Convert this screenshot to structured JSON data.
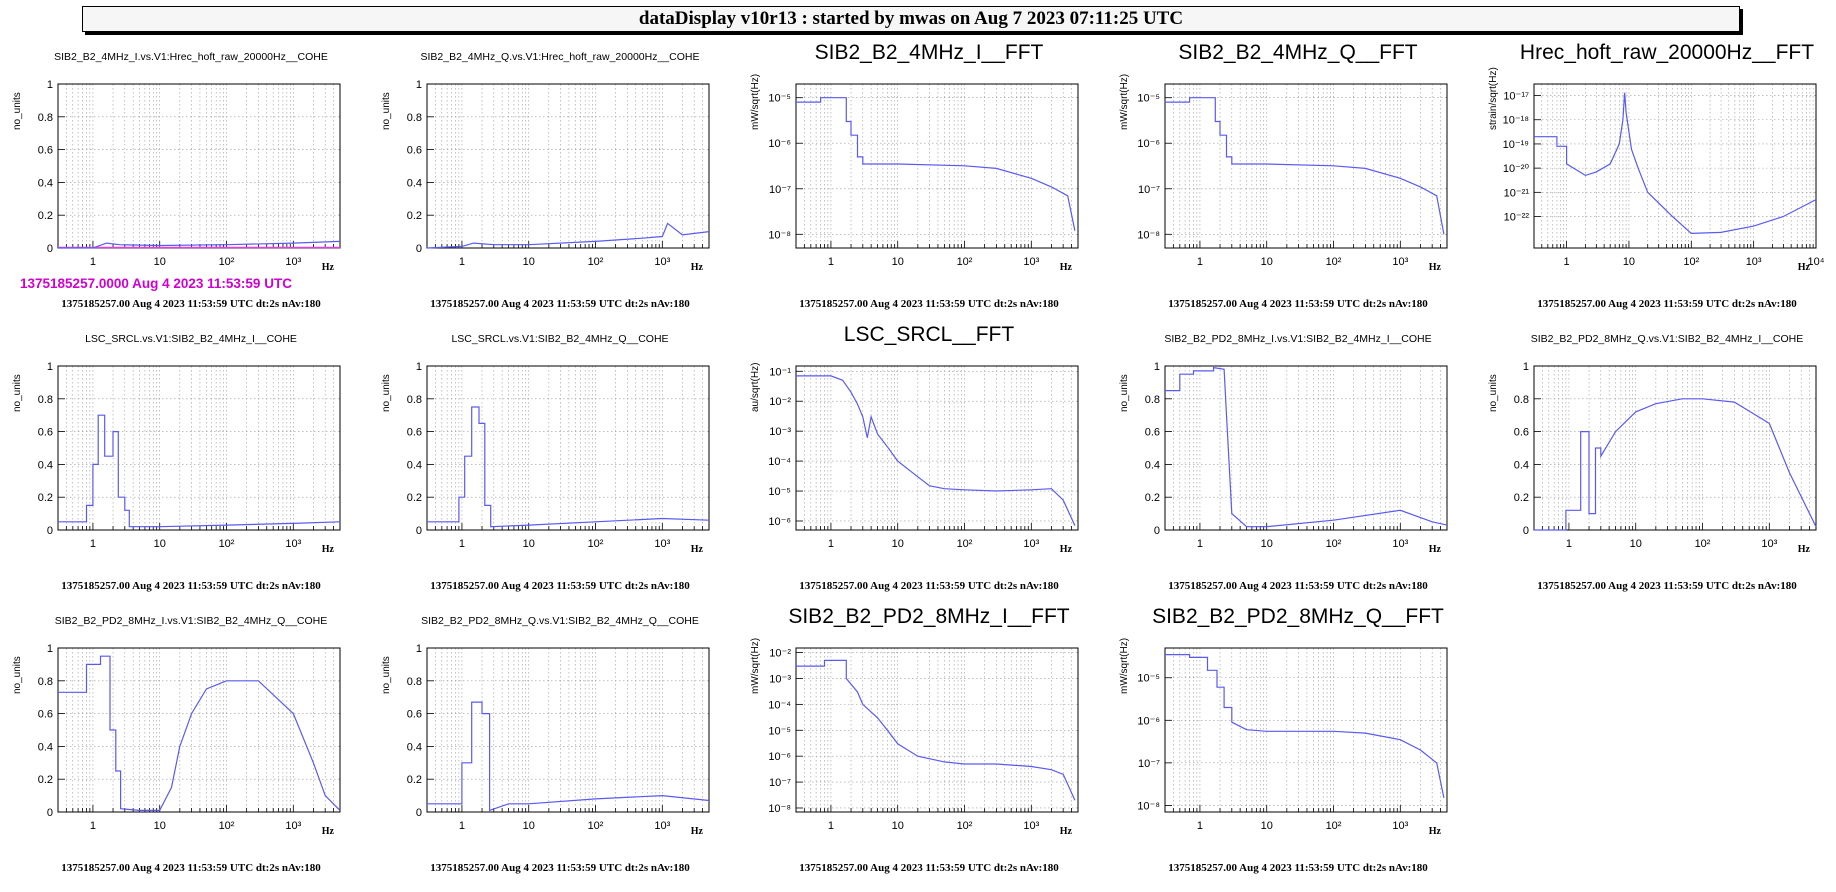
{
  "banner": "dataDisplay v10r13 : started by mwas on Aug  7 2023 07:11:25 UTC",
  "magenta_time": "1375185257.0000 Aug 4 2023 11:53:59 UTC",
  "footer_text": "1375185257.00 Aug 4 2023 11:53:59 UTC dt:2s nAv:180",
  "colors": {
    "trace": "#5a5af2",
    "zero_line": "#e040e0",
    "grid": "#9a9a9a",
    "magenta_text": "#d000d0"
  },
  "x_unit": "Hz",
  "chart_data": [
    {
      "type": "line",
      "title": "SIB2_B2_4MHz_I.vs.V1:Hrec_hoft_raw_20000Hz__COHE",
      "ylabel": "no_units",
      "xscale": "log",
      "yscale": "linear",
      "xlim": [
        0.3,
        5000
      ],
      "ylim": [
        0,
        1
      ],
      "xticks": [
        1,
        10,
        100,
        1000
      ],
      "yticks": [
        0,
        0.2,
        0.4,
        0.6,
        0.8,
        1
      ],
      "series": [
        {
          "x": [
            0.3,
            1,
            1.6,
            2.5,
            10,
            100,
            1000,
            5000
          ],
          "y": [
            0,
            0,
            0.03,
            0.02,
            0.015,
            0.02,
            0.03,
            0.04
          ]
        }
      ]
    },
    {
      "type": "line",
      "title": "SIB2_B2_4MHz_Q.vs.V1:Hrec_hoft_raw_20000Hz__COHE",
      "ylabel": "no_units",
      "xscale": "log",
      "yscale": "linear",
      "xlim": [
        0.3,
        5000
      ],
      "ylim": [
        0,
        1
      ],
      "xticks": [
        1,
        10,
        100,
        1000
      ],
      "yticks": [
        0,
        0.2,
        0.4,
        0.6,
        0.8,
        1
      ],
      "series": [
        {
          "x": [
            0.3,
            1,
            1.5,
            3,
            10,
            100,
            500,
            1000,
            1200,
            2000,
            5000
          ],
          "y": [
            0,
            0.01,
            0.03,
            0.02,
            0.02,
            0.04,
            0.06,
            0.07,
            0.15,
            0.08,
            0.1
          ]
        }
      ]
    },
    {
      "type": "line",
      "title": "SIB2_B2_4MHz_I__FFT",
      "ylabel": "mW/sqrt(Hz)",
      "xscale": "log",
      "yscale": "log",
      "xlim": [
        0.3,
        5000
      ],
      "ylim": [
        5e-09,
        2e-05
      ],
      "xticks": [
        1,
        10,
        100,
        1000
      ],
      "yticks": [
        1e-08,
        1e-07,
        1e-06,
        1e-05
      ],
      "series": [
        {
          "x": [
            0.3,
            0.7,
            0.7,
            1.7,
            1.7,
            2.0,
            2.0,
            2.5,
            2.5,
            3.0,
            3.0,
            10,
            100,
            300,
            1000,
            2000,
            3500,
            4500
          ],
          "y": [
            8e-06,
            8e-06,
            1e-05,
            1e-05,
            3e-06,
            3e-06,
            1.5e-06,
            1.5e-06,
            5e-07,
            5e-07,
            3.5e-07,
            3.5e-07,
            3.2e-07,
            2.8e-07,
            1.7e-07,
            1.1e-07,
            7e-08,
            1.2e-08
          ]
        }
      ]
    },
    {
      "type": "line",
      "title": "SIB2_B2_4MHz_Q__FFT",
      "ylabel": "mW/sqrt(Hz)",
      "xscale": "log",
      "yscale": "log",
      "xlim": [
        0.3,
        5000
      ],
      "ylim": [
        5e-09,
        2e-05
      ],
      "xticks": [
        1,
        10,
        100,
        1000
      ],
      "yticks": [
        1e-08,
        1e-07,
        1e-06,
        1e-05
      ],
      "series": [
        {
          "x": [
            0.3,
            0.7,
            0.7,
            1.7,
            1.7,
            2.0,
            2.0,
            2.5,
            2.5,
            3.0,
            3.0,
            10,
            100,
            300,
            1000,
            2000,
            3500,
            4500
          ],
          "y": [
            8e-06,
            8e-06,
            1e-05,
            1e-05,
            3e-06,
            3e-06,
            1.5e-06,
            1.5e-06,
            5e-07,
            5e-07,
            3.5e-07,
            3.5e-07,
            3.2e-07,
            2.8e-07,
            1.7e-07,
            1.1e-07,
            7e-08,
            1e-08
          ]
        }
      ]
    },
    {
      "type": "line",
      "title": "Hrec_hoft_raw_20000Hz__FFT",
      "ylabel": "strain/sqrt(Hz)",
      "xscale": "log",
      "yscale": "log",
      "xlim": [
        0.3,
        10000
      ],
      "ylim": [
        5e-24,
        3e-17
      ],
      "xticks": [
        1,
        10,
        100,
        1000,
        10000
      ],
      "yticks": [
        1e-22,
        1e-21,
        1e-20,
        1e-19,
        1e-18,
        1e-17
      ],
      "series": [
        {
          "x": [
            0.3,
            0.7,
            0.7,
            1.0,
            1.0,
            2.0,
            3.0,
            5.0,
            7.0,
            8.0,
            8.5,
            9.0,
            11.0,
            14.0,
            20.0,
            50.0,
            100.0,
            300.0,
            1000.0,
            3000.0,
            10000.0
          ],
          "y": [
            2e-19,
            2e-19,
            8e-20,
            8e-20,
            1.5e-20,
            5e-21,
            7e-21,
            1.5e-20,
            1e-19,
            1e-18,
            1.3e-17,
            2e-18,
            6e-20,
            1e-20,
            1e-21,
            1e-22,
            2e-23,
            2.2e-23,
            4e-23,
            1e-22,
            5e-22
          ]
        }
      ]
    },
    {
      "type": "line",
      "title": "LSC_SRCL.vs.V1:SIB2_B2_4MHz_I__COHE",
      "ylabel": "no_units",
      "xscale": "log",
      "yscale": "linear",
      "xlim": [
        0.3,
        5000
      ],
      "ylim": [
        0,
        1
      ],
      "xticks": [
        1,
        10,
        100,
        1000
      ],
      "yticks": [
        0,
        0.2,
        0.4,
        0.6,
        0.8,
        1
      ],
      "series": [
        {
          "x": [
            0.3,
            0.8,
            0.8,
            1.0,
            1.0,
            1.2,
            1.2,
            1.5,
            1.5,
            2.0,
            2.0,
            2.4,
            2.4,
            3.0,
            3.0,
            3.5,
            3.5,
            10,
            100,
            1000,
            5000
          ],
          "y": [
            0.05,
            0.05,
            0.15,
            0.15,
            0.4,
            0.4,
            0.7,
            0.7,
            0.45,
            0.45,
            0.6,
            0.6,
            0.2,
            0.2,
            0.12,
            0.12,
            0.02,
            0.02,
            0.03,
            0.04,
            0.05
          ]
        }
      ]
    },
    {
      "type": "line",
      "title": "LSC_SRCL.vs.V1:SIB2_B2_4MHz_Q__COHE",
      "ylabel": "no_units",
      "xscale": "log",
      "yscale": "linear",
      "xlim": [
        0.3,
        5000
      ],
      "ylim": [
        0,
        1
      ],
      "xticks": [
        1,
        10,
        100,
        1000
      ],
      "yticks": [
        0,
        0.2,
        0.4,
        0.6,
        0.8,
        1
      ],
      "series": [
        {
          "x": [
            0.3,
            0.9,
            0.9,
            1.1,
            1.1,
            1.4,
            1.4,
            1.8,
            1.8,
            2.2,
            2.2,
            2.7,
            2.7,
            10,
            100,
            1000,
            5000
          ],
          "y": [
            0.05,
            0.05,
            0.2,
            0.2,
            0.45,
            0.45,
            0.75,
            0.75,
            0.65,
            0.65,
            0.15,
            0.15,
            0.02,
            0.03,
            0.05,
            0.07,
            0.06
          ]
        }
      ]
    },
    {
      "type": "line",
      "title": "LSC_SRCL__FFT",
      "ylabel": "au/sqrt(Hz)",
      "xscale": "log",
      "yscale": "log",
      "xlim": [
        0.3,
        5000
      ],
      "ylim": [
        5e-07,
        0.15
      ],
      "xticks": [
        1,
        10,
        100,
        1000
      ],
      "yticks": [
        1e-06,
        1e-05,
        0.0001,
        0.001,
        0.01,
        0.1
      ],
      "series": [
        {
          "x": [
            0.3,
            1.0,
            1.5,
            2.0,
            2.5,
            3.0,
            3.5,
            4.0,
            5.0,
            7.0,
            10,
            20,
            30,
            50,
            100,
            300,
            1000,
            2000,
            3000,
            4500
          ],
          "y": [
            0.07,
            0.07,
            0.05,
            0.02,
            0.008,
            0.003,
            0.0006,
            0.003,
            0.0008,
            0.0003,
            0.0001,
            3e-05,
            1.5e-05,
            1.2e-05,
            1.1e-05,
            1e-05,
            1.1e-05,
            1.2e-05,
            5e-06,
            7e-07
          ]
        }
      ]
    },
    {
      "type": "line",
      "title": "SIB2_B2_PD2_8MHz_I.vs.V1:SIB2_B2_4MHz_I__COHE",
      "ylabel": "no_units",
      "xscale": "log",
      "yscale": "linear",
      "xlim": [
        0.3,
        5000
      ],
      "ylim": [
        0,
        1
      ],
      "xticks": [
        1,
        10,
        100,
        1000
      ],
      "yticks": [
        0,
        0.2,
        0.4,
        0.6,
        0.8,
        1
      ],
      "series": [
        {
          "x": [
            0.3,
            0.5,
            0.5,
            0.8,
            0.8,
            1.6,
            1.6,
            2.3,
            2.5,
            3.0,
            5.0,
            10,
            100,
            1000,
            3000,
            5000
          ],
          "y": [
            0.85,
            0.85,
            0.95,
            0.95,
            0.97,
            0.97,
            0.99,
            0.98,
            0.7,
            0.1,
            0.02,
            0.02,
            0.06,
            0.12,
            0.05,
            0.03
          ]
        }
      ]
    },
    {
      "type": "line",
      "title": "SIB2_B2_PD2_8MHz_Q.vs.V1:SIB2_B2_4MHz_I__COHE",
      "ylabel": "no_units",
      "xscale": "log",
      "yscale": "linear",
      "xlim": [
        0.3,
        5000
      ],
      "ylim": [
        0,
        1
      ],
      "xticks": [
        1,
        10,
        100,
        1000
      ],
      "yticks": [
        0,
        0.2,
        0.4,
        0.6,
        0.8,
        1
      ],
      "series": [
        {
          "x": [
            0.3,
            0.9,
            0.9,
            1.5,
            1.5,
            2.0,
            2.0,
            2.5,
            2.5,
            3.0,
            3.0,
            5.0,
            10,
            20,
            50,
            100,
            300,
            1000,
            2000,
            5000
          ],
          "y": [
            0.0,
            0.0,
            0.12,
            0.12,
            0.6,
            0.6,
            0.1,
            0.1,
            0.5,
            0.5,
            0.45,
            0.6,
            0.72,
            0.77,
            0.8,
            0.8,
            0.78,
            0.65,
            0.35,
            0.02
          ]
        }
      ]
    },
    {
      "type": "line",
      "title": "SIB2_B2_PD2_8MHz_I.vs.V1:SIB2_B2_4MHz_Q__COHE",
      "ylabel": "no_units",
      "xscale": "log",
      "yscale": "linear",
      "xlim": [
        0.3,
        5000
      ],
      "ylim": [
        0,
        1
      ],
      "xticks": [
        1,
        10,
        100,
        1000
      ],
      "yticks": [
        0,
        0.2,
        0.4,
        0.6,
        0.8,
        1
      ],
      "series": [
        {
          "x": [
            0.3,
            0.8,
            0.8,
            1.3,
            1.3,
            1.8,
            1.8,
            2.2,
            2.2,
            2.6,
            2.6,
            5.0,
            10,
            15,
            20,
            30,
            50,
            100,
            300,
            1000,
            2000,
            3000,
            5000
          ],
          "y": [
            0.73,
            0.73,
            0.9,
            0.9,
            0.95,
            0.95,
            0.5,
            0.5,
            0.25,
            0.25,
            0.02,
            0.01,
            0.01,
            0.15,
            0.4,
            0.6,
            0.75,
            0.8,
            0.8,
            0.6,
            0.3,
            0.1,
            0.01
          ]
        }
      ]
    },
    {
      "type": "line",
      "title": "SIB2_B2_PD2_8MHz_Q.vs.V1:SIB2_B2_4MHz_Q__COHE",
      "ylabel": "no_units",
      "xscale": "log",
      "yscale": "linear",
      "xlim": [
        0.3,
        5000
      ],
      "ylim": [
        0,
        1
      ],
      "xticks": [
        1,
        10,
        100,
        1000
      ],
      "yticks": [
        0,
        0.2,
        0.4,
        0.6,
        0.8,
        1
      ],
      "series": [
        {
          "x": [
            0.3,
            1.0,
            1.0,
            1.4,
            1.4,
            2.0,
            2.0,
            2.6,
            2.6,
            5.0,
            10,
            100,
            1000,
            5000
          ],
          "y": [
            0.05,
            0.05,
            0.3,
            0.3,
            0.67,
            0.67,
            0.6,
            0.6,
            0.01,
            0.05,
            0.05,
            0.08,
            0.1,
            0.07
          ]
        }
      ]
    },
    {
      "type": "line",
      "title": "SIB2_B2_PD2_8MHz_I__FFT",
      "ylabel": "mW/sqrt(Hz)",
      "xscale": "log",
      "yscale": "log",
      "xlim": [
        0.3,
        5000
      ],
      "ylim": [
        7e-09,
        0.015
      ],
      "xticks": [
        1,
        10,
        100,
        1000
      ],
      "yticks": [
        1e-08,
        1e-07,
        1e-06,
        1e-05,
        0.0001,
        0.001,
        0.01
      ],
      "series": [
        {
          "x": [
            0.3,
            0.8,
            0.8,
            1.7,
            1.7,
            2.5,
            3.0,
            5.0,
            7.0,
            10,
            20,
            50,
            100,
            300,
            1000,
            2000,
            3000,
            4500
          ],
          "y": [
            0.003,
            0.003,
            0.005,
            0.005,
            0.001,
            0.0003,
            0.0001,
            3e-05,
            1e-05,
            3e-06,
            1e-06,
            6e-07,
            5e-07,
            5e-07,
            4e-07,
            3e-07,
            2e-07,
            2e-08
          ]
        }
      ]
    },
    {
      "type": "line",
      "title": "SIB2_B2_PD2_8MHz_Q__FFT",
      "ylabel": "mW/sqrt(Hz)",
      "xscale": "log",
      "yscale": "log",
      "xlim": [
        0.3,
        5000
      ],
      "ylim": [
        7e-09,
        5e-05
      ],
      "xticks": [
        1,
        10,
        100,
        1000
      ],
      "yticks": [
        1e-08,
        1e-07,
        1e-06,
        1e-05
      ],
      "series": [
        {
          "x": [
            0.3,
            0.7,
            0.7,
            1.3,
            1.3,
            1.8,
            1.8,
            2.3,
            2.3,
            3.0,
            3.0,
            5.0,
            10,
            100,
            300,
            1000,
            2000,
            3500,
            4500
          ],
          "y": [
            3.5e-05,
            3.5e-05,
            3e-05,
            3e-05,
            1.5e-05,
            1.5e-05,
            6e-06,
            6e-06,
            2e-06,
            2e-06,
            9e-07,
            6e-07,
            5.5e-07,
            5.5e-07,
            5e-07,
            3.5e-07,
            2e-07,
            1e-07,
            1.5e-08
          ]
        }
      ]
    }
  ]
}
